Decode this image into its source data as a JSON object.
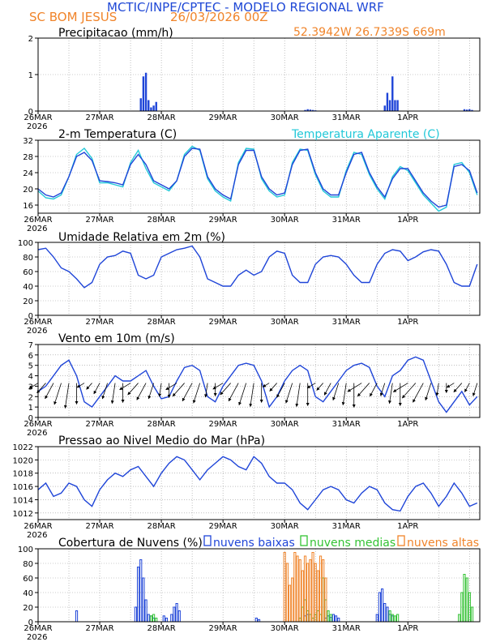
{
  "header": {
    "title": "MCTIC/INPE/CPTEC - MODELO REGIONAL WRF",
    "location": "SC BOM JESUS",
    "run": "26/03/2026 00Z",
    "coords": "52.3942W 26.7339S 669m"
  },
  "colors": {
    "title": "#1f48d6",
    "orange": "#f0842a",
    "series": "#1f45d8",
    "cyan": "#22c8d8",
    "green": "#33c233",
    "grid": "#999999"
  },
  "chart_data": [
    {
      "id": "precip",
      "type": "bar",
      "title": "Precipitacao (mm/h)",
      "ylim": [
        0,
        2
      ],
      "yticks": [
        0,
        1,
        2
      ],
      "xticks": [
        "26MAR",
        "27MAR",
        "28MAR",
        "29MAR",
        "30MAR",
        "31MAR",
        "1APR"
      ],
      "year": "2026",
      "x_hours": [
        40,
        41,
        42,
        43,
        44,
        45,
        46,
        104,
        105,
        106,
        107,
        108,
        135,
        136,
        137,
        138,
        139,
        140,
        166,
        167,
        168,
        169
      ],
      "values": [
        0.35,
        0.95,
        1.05,
        0.3,
        0.1,
        0.15,
        0.25,
        0.03,
        0.05,
        0.04,
        0.03,
        0.02,
        0.15,
        0.5,
        0.3,
        0.95,
        0.3,
        0.3,
        0.05,
        0.04,
        0.05,
        0.03
      ]
    },
    {
      "id": "temp",
      "type": "line",
      "title": "2-m Temperatura (C)",
      "legend": "Temperatura Aparente (C)",
      "ylim": [
        14,
        32
      ],
      "yticks": [
        16,
        20,
        24,
        28,
        32
      ],
      "xticks": [
        "26MAR",
        "27MAR",
        "28MAR",
        "29MAR",
        "30MAR",
        "31MAR",
        "1APR"
      ],
      "year": "2026",
      "series": [
        {
          "name": "2-m Temperatura (C)",
          "x": [
            0,
            3,
            6,
            9,
            12,
            15,
            18,
            21,
            24,
            27,
            30,
            33,
            36,
            39,
            42,
            45,
            48,
            51,
            54,
            57,
            60,
            63,
            66,
            69,
            72,
            75,
            78,
            81,
            84,
            87,
            90,
            93,
            96,
            99,
            102,
            105,
            108,
            111,
            114,
            117,
            120,
            123,
            126,
            129,
            132,
            135,
            138,
            141,
            144,
            147,
            150,
            153,
            156,
            159,
            162,
            165,
            168,
            171
          ],
          "values": [
            20,
            18.5,
            18,
            19,
            23,
            28,
            29,
            27,
            22,
            21.8,
            21.5,
            21,
            26,
            28.5,
            26,
            22,
            21,
            20,
            22,
            28,
            30,
            29.8,
            23,
            20,
            18.5,
            17.5,
            26,
            29.5,
            29.5,
            23,
            20,
            18.5,
            19,
            26,
            29.5,
            29.8,
            24,
            20,
            18.5,
            18.5,
            24,
            28.5,
            29,
            24,
            20.5,
            18,
            22.5,
            25,
            25,
            22,
            19,
            17,
            15.5,
            16,
            25.5,
            26,
            24.5,
            19
          ]
        },
        {
          "name": "Temperatura Aparente (C)",
          "x": [
            0,
            3,
            6,
            9,
            12,
            15,
            18,
            21,
            24,
            27,
            30,
            33,
            36,
            39,
            42,
            45,
            48,
            51,
            54,
            57,
            60,
            63,
            66,
            69,
            72,
            75,
            78,
            81,
            84,
            87,
            90,
            93,
            96,
            99,
            102,
            105,
            108,
            111,
            114,
            117,
            120,
            123,
            126,
            129,
            132,
            135,
            138,
            141,
            144,
            147,
            150,
            153,
            156,
            159,
            162,
            165,
            168,
            171
          ],
          "values": [
            19.5,
            17.8,
            17.5,
            18.5,
            23,
            28.5,
            30,
            27.5,
            21.5,
            21.5,
            21,
            20.5,
            26.5,
            29.5,
            25,
            21.5,
            20.5,
            19.5,
            22,
            28.5,
            30.5,
            29.5,
            22.5,
            19.5,
            18,
            17,
            26.5,
            30,
            29.8,
            22.5,
            19.5,
            18,
            18.5,
            26.5,
            29.8,
            29.5,
            23.5,
            19.5,
            18,
            18,
            24.5,
            29,
            28.5,
            23.5,
            20,
            17.5,
            23,
            25.5,
            24.5,
            21.5,
            18.5,
            16.5,
            14.5,
            15.5,
            26,
            26.5,
            24,
            18.5
          ]
        }
      ]
    },
    {
      "id": "rh",
      "type": "line",
      "title": "Umidade Relativa em 2m (%)",
      "ylim": [
        0,
        100
      ],
      "yticks": [
        0,
        20,
        40,
        60,
        80,
        100
      ],
      "xticks": [
        "26MAR",
        "27MAR",
        "28MAR",
        "29MAR",
        "30MAR",
        "31MAR",
        "1APR"
      ],
      "year": "2026",
      "series": [
        {
          "name": "Umidade Relativa",
          "x": [
            0,
            3,
            6,
            9,
            12,
            15,
            18,
            21,
            24,
            27,
            30,
            33,
            36,
            39,
            42,
            45,
            48,
            51,
            54,
            57,
            60,
            63,
            66,
            69,
            72,
            75,
            78,
            81,
            84,
            87,
            90,
            93,
            96,
            99,
            102,
            105,
            108,
            111,
            114,
            117,
            120,
            123,
            126,
            129,
            132,
            135,
            138,
            141,
            144,
            147,
            150,
            153,
            156,
            159,
            162,
            165,
            168,
            171
          ],
          "values": [
            90,
            92,
            80,
            65,
            60,
            50,
            38,
            45,
            70,
            80,
            82,
            88,
            85,
            55,
            50,
            55,
            80,
            85,
            90,
            92,
            95,
            80,
            50,
            45,
            40,
            40,
            55,
            62,
            55,
            60,
            80,
            88,
            85,
            55,
            45,
            45,
            70,
            80,
            82,
            80,
            70,
            55,
            45,
            45,
            70,
            85,
            90,
            88,
            75,
            80,
            87,
            90,
            88,
            70,
            45,
            40,
            40,
            70
          ]
        }
      ]
    },
    {
      "id": "wind",
      "type": "line",
      "title": "Vento em 10m (m/s)",
      "ylim": [
        0,
        7
      ],
      "yticks": [
        0,
        1,
        2,
        3,
        4,
        5,
        6,
        7
      ],
      "xticks": [
        "26MAR",
        "27MAR",
        "28MAR",
        "29MAR",
        "30MAR",
        "31MAR",
        "1APR"
      ],
      "year": "2026",
      "series": [
        {
          "name": "Vento em 10m (m/s)",
          "x": [
            0,
            3,
            6,
            9,
            12,
            15,
            18,
            21,
            24,
            27,
            30,
            33,
            36,
            39,
            42,
            45,
            48,
            51,
            54,
            57,
            60,
            63,
            66,
            69,
            72,
            75,
            78,
            81,
            84,
            87,
            90,
            93,
            96,
            99,
            102,
            105,
            108,
            111,
            114,
            117,
            120,
            123,
            126,
            129,
            132,
            135,
            138,
            141,
            144,
            147,
            150,
            153,
            156,
            159,
            162,
            165,
            168,
            171
          ],
          "values": [
            2.5,
            3,
            4,
            5,
            5.5,
            4,
            1.5,
            1,
            2,
            3,
            4,
            3.5,
            3.5,
            4,
            4.5,
            3,
            1.8,
            2,
            3.5,
            4.8,
            5,
            4.5,
            2,
            1.5,
            3,
            4,
            5,
            5.2,
            5,
            3.5,
            1,
            2,
            3.5,
            4.5,
            5,
            4.5,
            2,
            1.5,
            2.5,
            3.5,
            4.5,
            5,
            5.2,
            4.8,
            3,
            2,
            4,
            4.5,
            5.5,
            5.8,
            5.5,
            3.5,
            1.5,
            0.5,
            1.5,
            2.5,
            1.2,
            2
          ]
        }
      ]
    },
    {
      "id": "pressure",
      "type": "line",
      "title": "Pressao ao Nivel Medio do Mar (hPa)",
      "ylim": [
        1011,
        1022
      ],
      "yticks": [
        1012,
        1014,
        1016,
        1018,
        1020,
        1022
      ],
      "xticks": [
        "26MAR",
        "27MAR",
        "28MAR",
        "29MAR",
        "30MAR",
        "31MAR",
        "1APR"
      ],
      "year": "2026",
      "series": [
        {
          "name": "Pressao",
          "x": [
            0,
            3,
            6,
            9,
            12,
            15,
            18,
            21,
            24,
            27,
            30,
            33,
            36,
            39,
            42,
            45,
            48,
            51,
            54,
            57,
            60,
            63,
            66,
            69,
            72,
            75,
            78,
            81,
            84,
            87,
            90,
            93,
            96,
            99,
            102,
            105,
            108,
            111,
            114,
            117,
            120,
            123,
            126,
            129,
            132,
            135,
            138,
            141,
            144,
            147,
            150,
            153,
            156,
            159,
            162,
            165,
            168,
            171
          ],
          "values": [
            1015.5,
            1016.5,
            1014.5,
            1015,
            1016.5,
            1016,
            1014,
            1013,
            1015.5,
            1017,
            1018,
            1017.5,
            1018.5,
            1019,
            1017.5,
            1016,
            1018,
            1019.5,
            1020.5,
            1020,
            1018.5,
            1017,
            1018.5,
            1019.5,
            1020.5,
            1020,
            1019,
            1018.5,
            1020.5,
            1019.5,
            1017.5,
            1016.5,
            1016.5,
            1015.5,
            1013.5,
            1012.5,
            1014,
            1015.5,
            1016,
            1015.5,
            1014,
            1013.5,
            1015,
            1016,
            1015.5,
            1013.5,
            1012.5,
            1012.3,
            1014.5,
            1016,
            1016.5,
            1015,
            1013,
            1014.5,
            1016.5,
            1015,
            1013,
            1013.5
          ]
        }
      ]
    },
    {
      "id": "clouds",
      "type": "bar",
      "title": "Cobertura de Nuvens (%)",
      "legend": [
        "nuvens baixas",
        "nuvens medias",
        "nuvens altas"
      ],
      "ylim": [
        0,
        100
      ],
      "yticks": [
        0,
        20,
        40,
        60,
        80,
        100
      ],
      "xticks": [
        "26MAR",
        "27MAR",
        "28MAR",
        "29MAR",
        "30MAR",
        "31MAR",
        "1APR"
      ],
      "year": "2026",
      "series": [
        {
          "name": "nuvens baixas",
          "x": [
            15,
            38,
            39,
            40,
            41,
            42,
            43,
            44,
            45,
            49,
            50,
            52,
            53,
            54,
            55,
            85,
            86,
            104,
            105,
            112,
            113,
            114,
            115,
            116,
            117,
            132,
            133,
            134,
            135,
            136,
            137,
            138
          ],
          "values": [
            15,
            20,
            75,
            85,
            60,
            30,
            10,
            8,
            5,
            8,
            5,
            10,
            20,
            25,
            15,
            5,
            3,
            8,
            10,
            5,
            8,
            6,
            10,
            8,
            5,
            10,
            40,
            45,
            25,
            20,
            10,
            8
          ]
        },
        {
          "name": "nuvens medias",
          "x": [
            44,
            45,
            46,
            102,
            103,
            104,
            105,
            106,
            107,
            108,
            109,
            110,
            111,
            112,
            113,
            114,
            137,
            138,
            139,
            140,
            164,
            165,
            166,
            167,
            168,
            169
          ],
          "values": [
            8,
            10,
            5,
            5,
            20,
            30,
            15,
            10,
            5,
            10,
            15,
            10,
            60,
            30,
            15,
            10,
            15,
            10,
            8,
            10,
            10,
            40,
            65,
            60,
            40,
            20
          ]
        },
        {
          "name": "nuvens altas",
          "x": [
            96,
            97,
            98,
            99,
            100,
            101,
            102,
            103,
            104,
            105,
            106,
            107,
            108,
            109,
            110,
            111,
            112
          ],
          "values": [
            95,
            80,
            50,
            60,
            95,
            90,
            85,
            70,
            90,
            80,
            85,
            95,
            80,
            70,
            90,
            85,
            60
          ]
        }
      ]
    }
  ]
}
